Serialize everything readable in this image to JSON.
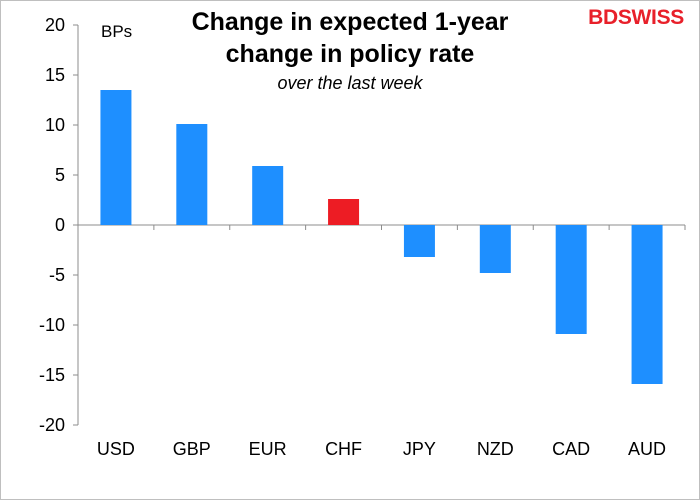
{
  "chart_data": {
    "type": "bar",
    "title": "Change in expected 1-year change in policy rate",
    "subtitle": "over the last week",
    "ylabel": "BPs",
    "xlabel": "",
    "ylim": [
      -20,
      20
    ],
    "yticks": [
      20,
      15,
      10,
      5,
      0,
      -5,
      -10,
      -15,
      -20
    ],
    "categories": [
      "USD",
      "GBP",
      "EUR",
      "CHF",
      "JPY",
      "NZD",
      "CAD",
      "AUD"
    ],
    "values": [
      13.5,
      10.1,
      5.9,
      2.6,
      -3.2,
      -4.8,
      -10.9,
      -15.9
    ],
    "colors": [
      "#1e8fff",
      "#1e8fff",
      "#1e8fff",
      "#ed1c24",
      "#1e8fff",
      "#1e8fff",
      "#1e8fff",
      "#1e8fff"
    ],
    "grid": false,
    "legend": "none"
  },
  "logo": {
    "part1": "BD",
    "part2": "SWISS"
  }
}
